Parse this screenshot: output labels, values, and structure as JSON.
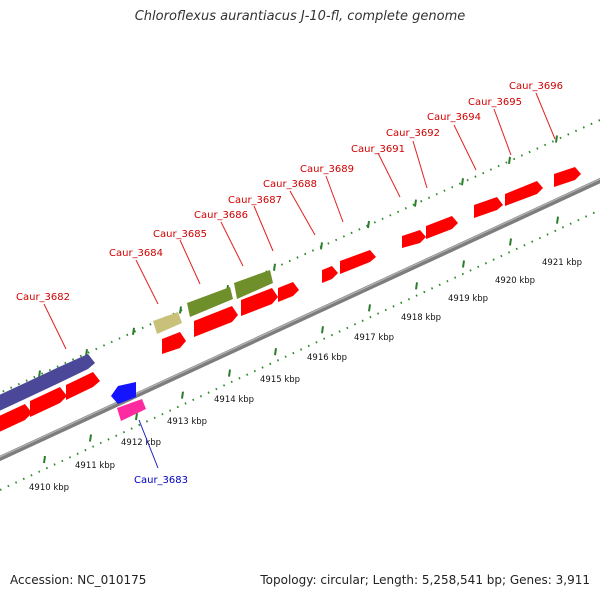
{
  "title": "Chloroflexus aurantiacus J-10-fl, complete genome",
  "footer": {
    "accession": "Accession: NC_010175",
    "summary": "Topology: circular; Length: 5,258,541 bp; Genes: 3,911"
  },
  "colors": {
    "plus_strand_label": "#d00000",
    "minus_strand_label": "#0000bb",
    "gene_red": "#ff0000",
    "gene_purple": "#4b4899",
    "gene_olive": "#6f8f2a",
    "gene_khaki": "#c9c07a",
    "gene_blue": "#1414ff",
    "gene_pink": "#ff2aa0",
    "backbone": "#888888",
    "ticks": "#2a7d2a"
  },
  "ticks": [
    {
      "label": "4910 kbp"
    },
    {
      "label": "4911 kbp"
    },
    {
      "label": "4912 kbp"
    },
    {
      "label": "4913 kbp"
    },
    {
      "label": "4914 kbp"
    },
    {
      "label": "4915 kbp"
    },
    {
      "label": "4916 kbp"
    },
    {
      "label": "4917 kbp"
    },
    {
      "label": "4918 kbp"
    },
    {
      "label": "4919 kbp"
    },
    {
      "label": "4920 kbp"
    },
    {
      "label": "4921 kbp"
    }
  ],
  "gene_labels": [
    {
      "name": "Caur_3682",
      "strand": "plus"
    },
    {
      "name": "Caur_3683",
      "strand": "minus"
    },
    {
      "name": "Caur_3684",
      "strand": "plus"
    },
    {
      "name": "Caur_3685",
      "strand": "plus"
    },
    {
      "name": "Caur_3686",
      "strand": "plus"
    },
    {
      "name": "Caur_3687",
      "strand": "plus"
    },
    {
      "name": "Caur_3688",
      "strand": "plus"
    },
    {
      "name": "Caur_3689",
      "strand": "plus"
    },
    {
      "name": "Caur_3691",
      "strand": "plus"
    },
    {
      "name": "Caur_3692",
      "strand": "plus"
    },
    {
      "name": "Caur_3694",
      "strand": "plus"
    },
    {
      "name": "Caur_3695",
      "strand": "plus"
    },
    {
      "name": "Caur_3696",
      "strand": "plus"
    }
  ]
}
